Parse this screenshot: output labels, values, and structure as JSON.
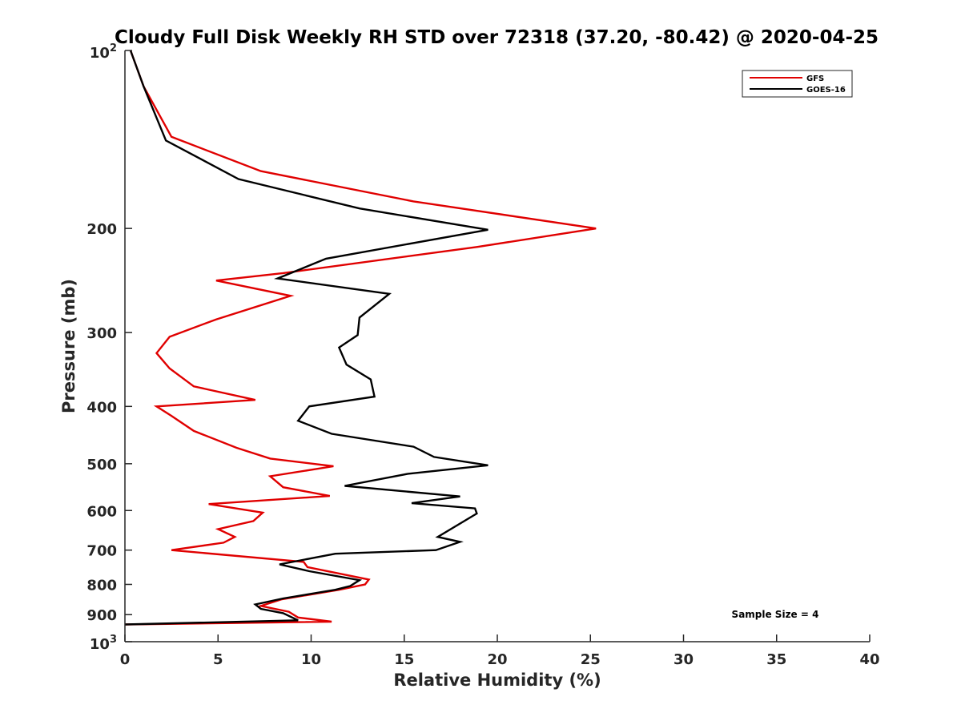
{
  "chart_data": {
    "type": "line",
    "title": "Cloudy Full Disk Weekly RH STD over 72318 (37.20, -80.42) @ 2020-04-25",
    "xlabel": "Relative Humidity (%)",
    "ylabel": "Pressure (mb)",
    "xlim": [
      0,
      40
    ],
    "ylim": [
      100,
      1000
    ],
    "yscale": "log",
    "y_reversed": true,
    "grid": false,
    "legend_position": "top-right",
    "x_ticks": [
      "0",
      "5",
      "10",
      "15",
      "20",
      "25",
      "30",
      "35",
      "40"
    ],
    "x_tick_values": [
      0,
      5,
      10,
      15,
      20,
      25,
      30,
      35,
      40
    ],
    "y_ticks": [
      {
        "value": 100,
        "base": "10",
        "exp": "2"
      },
      {
        "value": 200,
        "label": "200"
      },
      {
        "value": 300,
        "label": "300"
      },
      {
        "value": 400,
        "label": "400"
      },
      {
        "value": 500,
        "label": "500"
      },
      {
        "value": 600,
        "label": "600"
      },
      {
        "value": 700,
        "label": "700"
      },
      {
        "value": 800,
        "label": "800"
      },
      {
        "value": 900,
        "label": "900"
      },
      {
        "value": 1000,
        "base": "10",
        "exp": "3"
      }
    ],
    "series": [
      {
        "name": "GFS",
        "color": "#e00000",
        "x": [
          0.3,
          1.0,
          2.5,
          7.3,
          15.5,
          25.3,
          18.9,
          8.5,
          4.9,
          8.9,
          4.9,
          2.4,
          1.7,
          2.4,
          3.7,
          7.0,
          1.7,
          2.5,
          3.7,
          6.0,
          7.8,
          11.2,
          7.8,
          8.5,
          11.0,
          4.5,
          7.4,
          6.9,
          5.0,
          5.9,
          5.3,
          2.5,
          9.6,
          9.8,
          13.1,
          12.9,
          11.5,
          8.4,
          7.3,
          8.8,
          9.3,
          11.1,
          0.0
        ],
        "y": [
          100,
          115,
          140,
          160,
          180,
          200,
          215,
          238,
          245,
          260,
          285,
          305,
          325,
          345,
          370,
          390,
          400,
          415,
          440,
          470,
          490,
          505,
          525,
          548,
          567,
          585,
          605,
          625,
          645,
          665,
          680,
          700,
          733,
          748,
          785,
          800,
          817,
          848,
          870,
          890,
          910,
          925,
          935
        ]
      },
      {
        "name": "GOES-16",
        "color": "#000000",
        "x": [
          0.3,
          1.0,
          2.2,
          6.1,
          12.6,
          19.5,
          10.8,
          8.2,
          14.2,
          12.6,
          12.5,
          11.5,
          11.9,
          13.2,
          13.4,
          9.9,
          9.3,
          11.1,
          15.5,
          16.6,
          19.5,
          15.2,
          11.8,
          18.0,
          15.4,
          18.8,
          18.9,
          16.8,
          18.0,
          16.7,
          11.3,
          8.3,
          9.9,
          12.6,
          12.1,
          11.3,
          8.5,
          7.0,
          7.3,
          8.5,
          9.3,
          0.0
        ],
        "y": [
          100,
          115,
          142,
          165,
          185,
          201,
          225,
          243,
          258,
          283,
          303,
          318,
          340,
          360,
          385,
          400,
          423,
          445,
          468,
          487,
          503,
          520,
          545,
          568,
          583,
          595,
          607,
          665,
          678,
          700,
          710,
          740,
          760,
          787,
          805,
          817,
          845,
          865,
          880,
          895,
          920,
          935
        ]
      }
    ],
    "legend": [
      {
        "label": "GFS",
        "color": "#e00000"
      },
      {
        "label": "GOES-16",
        "color": "#000000"
      }
    ],
    "annotations": [
      {
        "text": "Sample Size = 4"
      }
    ]
  }
}
